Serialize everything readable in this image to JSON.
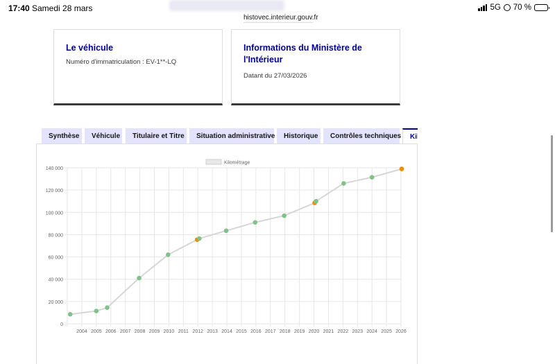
{
  "status_bar": {
    "time": "17:40",
    "date": "Samedi 28 mars",
    "network": "5G",
    "battery": "70 %",
    "battery_level": 0.7
  },
  "browser": {
    "url": "histovec.interieur.gouv.fr"
  },
  "cards": {
    "vehicle": {
      "title": "Le véhicule",
      "registration": "Numéro d'immatriculation : EV-1**-LQ"
    },
    "ministry": {
      "title_line1": "Informations du Ministère de",
      "title_line2": "l'Intérieur",
      "date": "Datant du 27/03/2026"
    }
  },
  "tabs": [
    {
      "label": "Synthèse"
    },
    {
      "label": "Véhicule"
    },
    {
      "label": "Titulaire et Titre"
    },
    {
      "label": "Situation administrative"
    },
    {
      "label": "Historique"
    },
    {
      "label": "Contrôles techniques"
    },
    {
      "label": "Kil"
    }
  ],
  "active_tab": 6,
  "colors": {
    "accent": "#000091",
    "line": "#d6d6d6",
    "point_green": "#82c18a",
    "point_orange": "#f08c00",
    "tab_bg": "#e3e3fd"
  },
  "chart_data": {
    "type": "line",
    "legend": "Kilométrage",
    "legend_position": "top",
    "grid": true,
    "xlim": [
      2003,
      2026
    ],
    "ylim": [
      0,
      140000
    ],
    "x_ticks": [
      "2004",
      "2005",
      "2006",
      "2007",
      "2008",
      "2009",
      "2010",
      "2011",
      "2012",
      "2013",
      "2014",
      "2015",
      "2016",
      "2017",
      "2018",
      "2019",
      "2020",
      "2021",
      "2022",
      "2023",
      "2024",
      "2025",
      "2026"
    ],
    "y_ticks": [
      "0",
      "20 000",
      "40 000",
      "60 000",
      "80 000",
      "100 000",
      "120 000",
      "140 000"
    ],
    "points": [
      {
        "x": 2003.2,
        "y": 8500,
        "color": "green"
      },
      {
        "x": 2005.0,
        "y": 11500,
        "color": "green"
      },
      {
        "x": 2005.75,
        "y": 14500,
        "color": "green"
      },
      {
        "x": 2007.95,
        "y": 41000,
        "color": "green"
      },
      {
        "x": 2009.95,
        "y": 62000,
        "color": "green"
      },
      {
        "x": 2011.95,
        "y": 75500,
        "color": "orange"
      },
      {
        "x": 2012.1,
        "y": 76500,
        "color": "green"
      },
      {
        "x": 2013.95,
        "y": 83500,
        "color": "green"
      },
      {
        "x": 2015.95,
        "y": 91000,
        "color": "green"
      },
      {
        "x": 2017.95,
        "y": 97000,
        "color": "green"
      },
      {
        "x": 2020.05,
        "y": 108500,
        "color": "orange"
      },
      {
        "x": 2020.15,
        "y": 110000,
        "color": "green"
      },
      {
        "x": 2022.05,
        "y": 126000,
        "color": "green"
      },
      {
        "x": 2024.0,
        "y": 131500,
        "color": "green"
      },
      {
        "x": 2026.05,
        "y": 139000,
        "color": "orange"
      }
    ]
  }
}
